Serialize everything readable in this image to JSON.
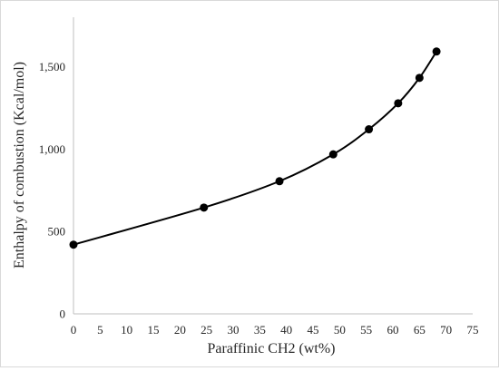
{
  "chart_data": {
    "type": "line",
    "xlabel": "Paraffinic CH2 (wt%)",
    "ylabel": "Enthalpy of combustion (Kcal/mol)",
    "xlim": [
      0,
      75
    ],
    "ylim": [
      0,
      1800
    ],
    "x_ticks": [
      0,
      5,
      10,
      15,
      20,
      25,
      30,
      35,
      40,
      45,
      50,
      55,
      60,
      65,
      70,
      75
    ],
    "y_ticks": [
      0,
      500,
      1000,
      1500
    ],
    "x_tick_labels": [
      "0",
      "5",
      "10",
      "15",
      "20",
      "25",
      "30",
      "35",
      "40",
      "45",
      "50",
      "55",
      "60",
      "65",
      "70",
      "75"
    ],
    "y_tick_labels": [
      "0",
      "500",
      "1,000",
      "1,500"
    ],
    "grid": false,
    "legend": "none",
    "series": [
      {
        "x": [
          0,
          24.5,
          38.7,
          48.8,
          55.5,
          61,
          65,
          68.2
        ],
        "y": [
          420,
          645,
          805,
          968,
          1120,
          1278,
          1432,
          1592
        ],
        "line_color": "#000000",
        "marker_color": "#000000",
        "smooth": true
      }
    ]
  }
}
